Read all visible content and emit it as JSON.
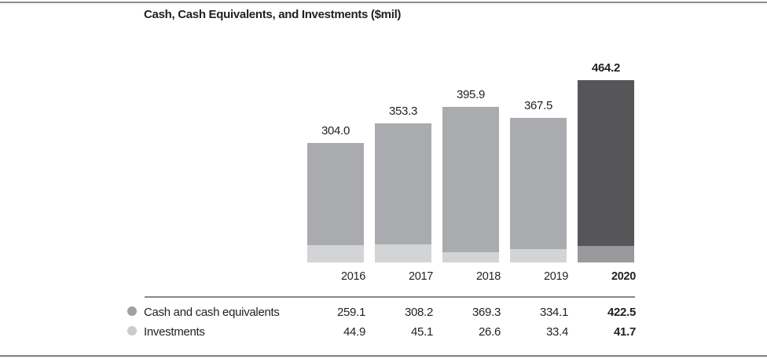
{
  "title": "Cash, Cash Equivalents, and Investments ($mil)",
  "colors": {
    "bar_cash_normal": "#a9abae",
    "bar_investments_normal": "#d2d4d6",
    "bar_cash_highlight": "#565658",
    "bar_investments_highlight": "#98999c",
    "legend_dot_cash": "#9fa1a4",
    "legend_dot_investments": "#c9cbcd",
    "rule_gray": "#8a8a8a",
    "text": "#231f20"
  },
  "chart_data": {
    "type": "bar",
    "stacked": true,
    "title": "Cash, Cash Equivalents, and Investments ($mil)",
    "xlabel": "",
    "ylabel": "",
    "categories": [
      "2016",
      "2017",
      "2018",
      "2019",
      "2020"
    ],
    "series": [
      {
        "name": "Cash and cash equivalents",
        "values": [
          259.1,
          308.2,
          369.3,
          334.1,
          422.5
        ]
      },
      {
        "name": "Investments",
        "values": [
          44.9,
          45.1,
          26.6,
          33.4,
          41.7
        ]
      }
    ],
    "totals": [
      304.0,
      353.3,
      395.9,
      367.5,
      464.2
    ],
    "total_labels": [
      "304.0",
      "353.3",
      "395.9",
      "367.5",
      "464.2"
    ],
    "highlight_category": "2020",
    "grid": false,
    "legend_position": "bottom-left-table",
    "value_axis_visible": false
  },
  "legend_table": {
    "rows": [
      {
        "label": "Cash and cash equivalents",
        "values": [
          "259.1",
          "308.2",
          "369.3",
          "334.1",
          "422.5"
        ]
      },
      {
        "label": "Investments",
        "values": [
          "44.9",
          "45.1",
          "26.6",
          "33.4",
          "41.7"
        ]
      }
    ]
  }
}
